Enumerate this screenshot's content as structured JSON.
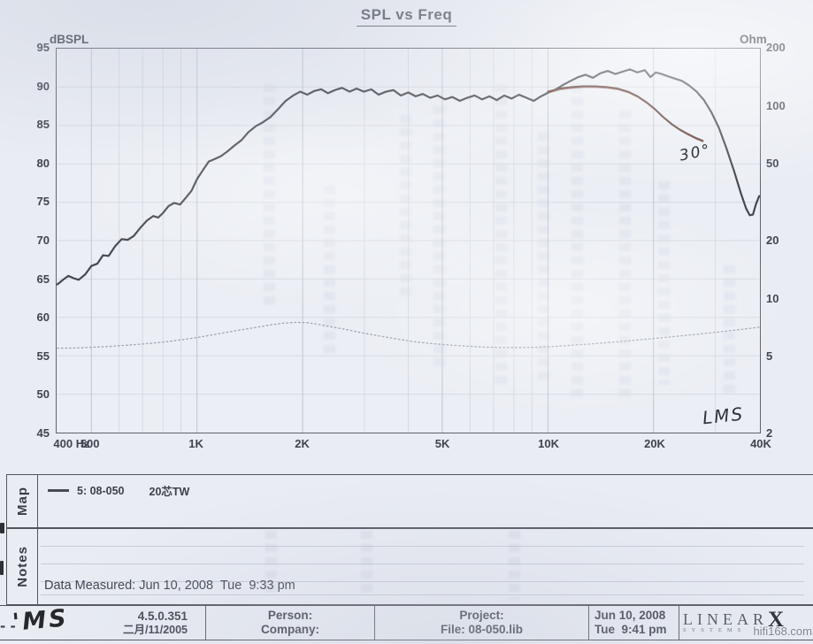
{
  "page": {
    "title": "SPL vs Freq"
  },
  "map_panel": {
    "label": "Map",
    "legend_id": "5: 08-050",
    "legend_desc": "20芯TW",
    "swatch_color": "#4a4b52"
  },
  "notes_panel": {
    "label": "Notes",
    "text": "Data Measured: Jun 10, 2008  Tue  9:33 pm"
  },
  "footer": {
    "version": "4.5.0.351",
    "version_date": "二月/11/2005",
    "person_label": "Person:",
    "company_label": "Company:",
    "project_label": "Project:",
    "file_label": "File: 08-050.lib",
    "date_line1": "Jun 10, 2008",
    "date_line2": "Tue  9:41 pm",
    "logo_main": "LINEAR",
    "logo_x": "X",
    "logo_sub": "SYSTEMS"
  },
  "handwriting": {
    "angle_note": "30°",
    "lms_note": "LMS",
    "footer_scribble": "'MS",
    "footer_dots": "- -"
  },
  "watermark": "hifi168.com",
  "colors": {
    "ink": "#46474f",
    "overdraw_pen": "#5d3c36",
    "impedance": "#989da7",
    "grid_minor": "#d6dae3",
    "grid_major": "#bfc5d1",
    "paper": "#e9ecf3"
  },
  "chart_data": {
    "type": "line",
    "title": "SPL vs Freq",
    "grid": true,
    "x_axis": {
      "scale": "log",
      "min": 400,
      "max": 40000,
      "major_ticks": [
        {
          "f": 400,
          "label": "400 Hz",
          "dx": 18
        },
        {
          "f": 500,
          "label": "500"
        },
        {
          "f": 1000,
          "label": "1K"
        },
        {
          "f": 2000,
          "label": "2K"
        },
        {
          "f": 5000,
          "label": "5K"
        },
        {
          "f": 10000,
          "label": "10K"
        },
        {
          "f": 20000,
          "label": "20K"
        },
        {
          "f": 40000,
          "label": "40K"
        }
      ],
      "minor_gridlines": [
        600,
        700,
        800,
        900,
        3000,
        4000,
        6000,
        7000,
        8000,
        9000,
        30000
      ]
    },
    "y_left": {
      "label": "dBSPL",
      "min": 45,
      "max": 95,
      "ticks": [
        95,
        90,
        85,
        80,
        75,
        70,
        65,
        60,
        55,
        50,
        45
      ]
    },
    "y_right": {
      "label": "Ohm",
      "min": 2,
      "max": 200,
      "scale": "log",
      "ticks": [
        200,
        100,
        50,
        20,
        10,
        5,
        2
      ]
    },
    "series": [
      {
        "id": "spl-on-axis",
        "name": "5: 08-050 20芯TW (SPL on-axis)",
        "axis": "left",
        "color": "#46474f",
        "width": 2.2,
        "style": "solid",
        "points": [
          [
            400,
            64.3
          ],
          [
            415,
            64.9
          ],
          [
            430,
            65.4
          ],
          [
            445,
            65.1
          ],
          [
            460,
            64.9
          ],
          [
            480,
            65.6
          ],
          [
            500,
            66.7
          ],
          [
            520,
            67.0
          ],
          [
            540,
            68.1
          ],
          [
            560,
            68.0
          ],
          [
            585,
            69.3
          ],
          [
            610,
            70.2
          ],
          [
            635,
            70.1
          ],
          [
            660,
            70.6
          ],
          [
            690,
            71.7
          ],
          [
            720,
            72.6
          ],
          [
            750,
            73.2
          ],
          [
            775,
            73.0
          ],
          [
            800,
            73.6
          ],
          [
            830,
            74.5
          ],
          [
            860,
            74.9
          ],
          [
            895,
            74.7
          ],
          [
            930,
            75.6
          ],
          [
            965,
            76.5
          ],
          [
            1000,
            78.0
          ],
          [
            1040,
            79.2
          ],
          [
            1080,
            80.3
          ],
          [
            1120,
            80.6
          ],
          [
            1170,
            81.0
          ],
          [
            1220,
            81.6
          ],
          [
            1280,
            82.4
          ],
          [
            1340,
            83.1
          ],
          [
            1400,
            84.1
          ],
          [
            1470,
            84.9
          ],
          [
            1540,
            85.4
          ],
          [
            1620,
            86.1
          ],
          [
            1700,
            87.1
          ],
          [
            1790,
            88.2
          ],
          [
            1880,
            88.9
          ],
          [
            1970,
            89.4
          ],
          [
            2060,
            89.0
          ],
          [
            2160,
            89.5
          ],
          [
            2260,
            89.7
          ],
          [
            2360,
            89.2
          ],
          [
            2470,
            89.6
          ],
          [
            2590,
            89.9
          ],
          [
            2720,
            89.4
          ],
          [
            2850,
            89.8
          ],
          [
            2990,
            89.4
          ],
          [
            3140,
            89.7
          ],
          [
            3290,
            89.0
          ],
          [
            3460,
            89.4
          ],
          [
            3630,
            89.6
          ],
          [
            3810,
            88.9
          ],
          [
            4000,
            89.3
          ],
          [
            4200,
            88.8
          ],
          [
            4400,
            89.1
          ],
          [
            4620,
            88.6
          ],
          [
            4850,
            88.9
          ],
          [
            5090,
            88.4
          ],
          [
            5340,
            88.7
          ],
          [
            5610,
            88.2
          ],
          [
            5890,
            88.6
          ],
          [
            6180,
            88.9
          ],
          [
            6490,
            88.4
          ],
          [
            6810,
            88.8
          ],
          [
            7150,
            88.3
          ],
          [
            7510,
            88.9
          ],
          [
            7880,
            88.5
          ],
          [
            8270,
            89.0
          ],
          [
            8680,
            88.6
          ],
          [
            9110,
            88.2
          ],
          [
            9560,
            88.8
          ],
          [
            10040,
            89.3
          ],
          [
            10540,
            89.7
          ],
          [
            11060,
            90.3
          ],
          [
            11610,
            90.8
          ],
          [
            12190,
            91.3
          ],
          [
            12800,
            91.6
          ],
          [
            13440,
            91.2
          ],
          [
            14110,
            91.8
          ],
          [
            14810,
            92.1
          ],
          [
            15550,
            91.7
          ],
          [
            16320,
            92.0
          ],
          [
            17130,
            92.3
          ],
          [
            17980,
            91.9
          ],
          [
            18880,
            92.2
          ],
          [
            19600,
            91.3
          ],
          [
            20300,
            91.9
          ],
          [
            21100,
            91.7
          ],
          [
            22000,
            91.4
          ],
          [
            23000,
            91.1
          ],
          [
            24100,
            90.8
          ],
          [
            25270,
            90.2
          ],
          [
            26530,
            89.4
          ],
          [
            27850,
            88.3
          ],
          [
            29240,
            86.7
          ],
          [
            30700,
            84.7
          ],
          [
            32230,
            82.1
          ],
          [
            33840,
            79.2
          ],
          [
            35520,
            76.1
          ],
          [
            36700,
            74.2
          ],
          [
            37600,
            73.3
          ],
          [
            38400,
            73.4
          ],
          [
            39200,
            74.8
          ],
          [
            40000,
            75.8
          ]
        ]
      },
      {
        "id": "spl-30deg",
        "name": "30° off-axis (hand-traced)",
        "axis": "left",
        "color": "#5d3c36",
        "width": 2.1,
        "style": "solid",
        "overdraw": true,
        "overdraw_color": "#8a4f44",
        "points": [
          [
            10000,
            89.4
          ],
          [
            10800,
            89.8
          ],
          [
            11700,
            90.0
          ],
          [
            12600,
            90.1
          ],
          [
            13600,
            90.1
          ],
          [
            14700,
            90.0
          ],
          [
            15800,
            89.8
          ],
          [
            16900,
            89.4
          ],
          [
            18000,
            88.8
          ],
          [
            19100,
            88.0
          ],
          [
            20200,
            87.1
          ],
          [
            21300,
            86.1
          ],
          [
            22500,
            85.2
          ],
          [
            23700,
            84.5
          ],
          [
            25000,
            83.9
          ],
          [
            26300,
            83.4
          ],
          [
            27600,
            83.0
          ]
        ]
      },
      {
        "id": "impedance",
        "name": "Impedance (Ohm)",
        "axis": "right",
        "color": "#989da7",
        "width": 1.3,
        "style": "dotted",
        "opacity": 0.9,
        "points": [
          [
            400,
            5.5
          ],
          [
            450,
            5.52
          ],
          [
            500,
            5.56
          ],
          [
            560,
            5.62
          ],
          [
            630,
            5.7
          ],
          [
            710,
            5.8
          ],
          [
            800,
            5.92
          ],
          [
            900,
            6.08
          ],
          [
            1000,
            6.25
          ],
          [
            1130,
            6.5
          ],
          [
            1270,
            6.75
          ],
          [
            1430,
            7.0
          ],
          [
            1600,
            7.25
          ],
          [
            1750,
            7.42
          ],
          [
            1900,
            7.5
          ],
          [
            2050,
            7.48
          ],
          [
            2200,
            7.35
          ],
          [
            2400,
            7.12
          ],
          [
            2650,
            6.9
          ],
          [
            2950,
            6.62
          ],
          [
            3300,
            6.38
          ],
          [
            3700,
            6.15
          ],
          [
            4150,
            5.95
          ],
          [
            4650,
            5.82
          ],
          [
            5200,
            5.72
          ],
          [
            5850,
            5.64
          ],
          [
            6550,
            5.58
          ],
          [
            7350,
            5.55
          ],
          [
            8250,
            5.54
          ],
          [
            9250,
            5.56
          ],
          [
            10400,
            5.62
          ],
          [
            11700,
            5.7
          ],
          [
            13100,
            5.78
          ],
          [
            14700,
            5.88
          ],
          [
            16500,
            5.98
          ],
          [
            18500,
            6.1
          ],
          [
            20800,
            6.22
          ],
          [
            23300,
            6.35
          ],
          [
            26100,
            6.48
          ],
          [
            29300,
            6.62
          ],
          [
            32900,
            6.78
          ],
          [
            36900,
            6.95
          ],
          [
            40000,
            7.08
          ]
        ]
      }
    ],
    "annotations": [
      {
        "text": "30°",
        "note": "handwritten near 20K on 30-degree curve"
      },
      {
        "text": "LMS",
        "note": "handwritten at bottom-right of plot"
      }
    ],
    "legend_position": "map-panel-below-chart"
  }
}
